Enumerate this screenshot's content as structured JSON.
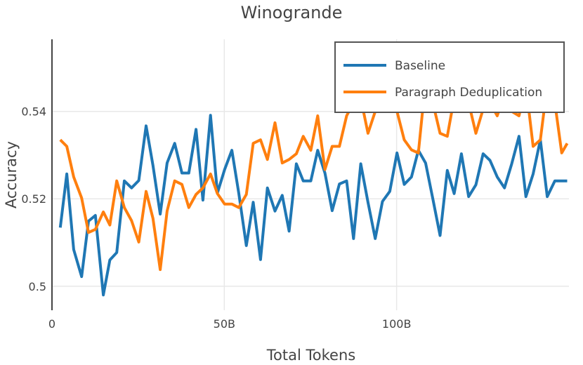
{
  "chart_data": {
    "type": "line",
    "title": "Winogrande",
    "xlabel": "Total Tokens",
    "ylabel": "Accuracy",
    "xlim": [
      0,
      150
    ],
    "ylim": [
      0.4945,
      0.5565
    ],
    "x_ticks": [
      {
        "value": 0,
        "label": "0"
      },
      {
        "value": 50,
        "label": "50B"
      },
      {
        "value": 100,
        "label": "100B"
      }
    ],
    "y_ticks": [
      {
        "value": 0.5,
        "label": "0.5"
      },
      {
        "value": 0.52,
        "label": "0.52"
      },
      {
        "value": 0.54,
        "label": "0.54"
      }
    ],
    "grid": true,
    "legend_position": "top-right",
    "x": [
      2.4,
      4.3,
      6.3,
      8.6,
      10.6,
      12.6,
      14.9,
      16.8,
      18.8,
      21.0,
      23.1,
      25.2,
      27.3,
      29.3,
      31.4,
      33.4,
      35.6,
      37.7,
      39.7,
      41.8,
      43.8,
      46.0,
      48.0,
      50.1,
      52.2,
      54.2,
      56.4,
      58.4,
      60.5,
      62.5,
      64.7,
      66.8,
      68.8,
      70.9,
      72.9,
      75.1,
      77.1,
      79.2,
      81.3,
      83.4,
      85.5,
      87.5,
      89.6,
      91.7,
      93.8,
      95.9,
      98.0,
      100.1,
      102.2,
      104.3,
      106.3,
      108.4,
      110.5,
      112.6,
      114.7,
      116.7,
      118.8,
      120.9,
      123.0,
      125.1,
      127.1,
      129.2,
      131.3,
      133.4,
      135.5,
      137.5,
      139.6,
      141.7,
      143.7,
      145.9,
      147.9,
      149.5
    ],
    "series": [
      {
        "name": "Baseline",
        "color": "#1f77b4",
        "values": [
          0.5134,
          0.5257,
          0.5084,
          0.5022,
          0.5149,
          0.5162,
          0.498,
          0.506,
          0.5077,
          0.5241,
          0.5225,
          0.5242,
          0.5367,
          0.5276,
          0.5165,
          0.5282,
          0.5327,
          0.5259,
          0.5259,
          0.5359,
          0.5197,
          0.5391,
          0.5213,
          0.5267,
          0.5311,
          0.5213,
          0.5093,
          0.5192,
          0.5061,
          0.5225,
          0.5172,
          0.5208,
          0.5126,
          0.528,
          0.5241,
          0.5241,
          0.5311,
          0.5259,
          0.5173,
          0.5234,
          0.5241,
          0.5109,
          0.528,
          0.5192,
          0.5109,
          0.5194,
          0.5217,
          0.5305,
          0.5233,
          0.525,
          0.5311,
          0.5282,
          0.52,
          0.5116,
          0.5265,
          0.5212,
          0.5303,
          0.5205,
          0.5232,
          0.5303,
          0.5288,
          0.525,
          0.5225,
          0.528,
          0.5343,
          0.5205,
          0.5257,
          0.5335,
          0.5205,
          0.5241,
          0.5241,
          0.5241
        ]
      },
      {
        "name": "Paragraph Deduplication",
        "color": "#ff7f0e",
        "values": [
          0.5335,
          0.532,
          0.525,
          0.5202,
          0.5123,
          0.513,
          0.517,
          0.514,
          0.5241,
          0.518,
          0.515,
          0.5101,
          0.5217,
          0.5155,
          0.5038,
          0.5172,
          0.5241,
          0.5233,
          0.518,
          0.521,
          0.5225,
          0.5257,
          0.5212,
          0.5188,
          0.5188,
          0.518,
          0.521,
          0.5327,
          0.5335,
          0.529,
          0.5374,
          0.5282,
          0.529,
          0.5303,
          0.5343,
          0.5311,
          0.539,
          0.5267,
          0.532,
          0.532,
          0.539,
          0.542,
          0.543,
          0.535,
          0.54,
          0.541,
          0.542,
          0.54,
          0.5335,
          0.5312,
          0.5305,
          0.547,
          0.542,
          0.535,
          0.5343,
          0.543,
          0.545,
          0.542,
          0.535,
          0.5405,
          0.542,
          0.539,
          0.544,
          0.54,
          0.539,
          0.546,
          0.532,
          0.5335,
          0.546,
          0.542,
          0.5305,
          0.5327
        ]
      }
    ]
  }
}
